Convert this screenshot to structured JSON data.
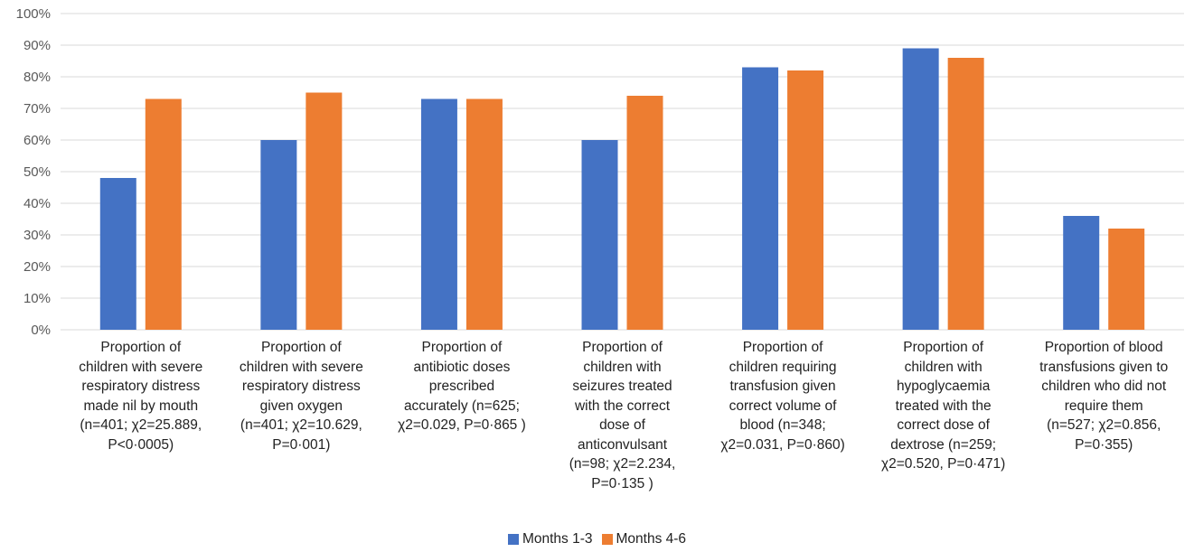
{
  "chart_data": {
    "type": "bar",
    "title": "",
    "xlabel": "",
    "ylabel": "",
    "ylim": [
      0,
      100
    ],
    "y_unit": "%",
    "yticks": [
      "0%",
      "10%",
      "20%",
      "30%",
      "40%",
      "50%",
      "60%",
      "70%",
      "80%",
      "90%",
      "100%"
    ],
    "grid": true,
    "legend_position": "bottom",
    "categories": [
      "Proportion of children with severe respiratory distress made nil by mouth (n=401; χ2=25.889, P<0·0005)",
      "Proportion of children with severe respiratory distress given oxygen (n=401; χ2=10.629, P=0·001)",
      "Proportion of antibiotic doses prescribed accurately (n=625; χ2=0.029, P=0·865 )",
      "Proportion of children with seizures treated with the correct dose of anticonvulsant (n=98; χ2=2.234, P=0·135 )",
      "Proportion of children requiring transfusion given correct volume of blood (n=348; χ2=0.031, P=0·860)",
      "Proportion of children with hypoglycaemia treated with the correct dose of dextrose (n=259; χ2=0.520, P=0·471)",
      "Proportion of blood transfusions given to children who did not require them (n=527; χ2=0.856, P=0·355)"
    ],
    "category_lines": [
      [
        "Proportion of",
        "children with severe",
        "respiratory distress",
        "made nil by mouth",
        "(n=401; χ2=25.889,",
        "P<0·0005)"
      ],
      [
        "Proportion of",
        "children with severe",
        "respiratory distress",
        "given oxygen",
        "(n=401; χ2=10.629,",
        "P=0·001)"
      ],
      [
        "Proportion of",
        "antibiotic doses",
        "prescribed",
        "accurately (n=625;",
        "χ2=0.029, P=0·865 )"
      ],
      [
        "Proportion of",
        "children with",
        "seizures treated",
        "with the correct",
        "dose of",
        "anticonvulsant",
        "(n=98; χ2=2.234,",
        "P=0·135 )"
      ],
      [
        "Proportion of",
        "children requiring",
        "transfusion given",
        "correct volume of",
        "blood (n=348;",
        "χ2=0.031, P=0·860)"
      ],
      [
        "Proportion of",
        "children with",
        "hypoglycaemia",
        "treated with the",
        "correct dose of",
        "dextrose (n=259;",
        "χ2=0.520, P=0·471)"
      ],
      [
        "Proportion of blood",
        "transfusions given to",
        "children who did not",
        "require them",
        "(n=527; χ2=0.856,",
        "P=0·355)"
      ]
    ],
    "series": [
      {
        "name": "Months 1-3",
        "color": "#4472C4",
        "values": [
          48,
          60,
          73,
          60,
          83,
          89,
          36
        ]
      },
      {
        "name": "Months 4-6",
        "color": "#ED7D31",
        "values": [
          73,
          75,
          73,
          74,
          82,
          86,
          32
        ]
      }
    ],
    "gridline_color": "#D9D9D9"
  }
}
